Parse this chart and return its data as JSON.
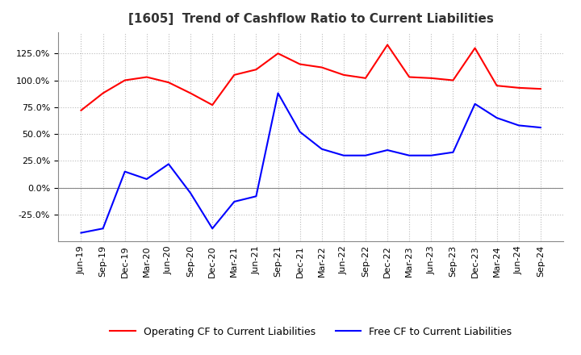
{
  "title": "[1605]  Trend of Cashflow Ratio to Current Liabilities",
  "x_labels": [
    "Jun-19",
    "Sep-19",
    "Dec-19",
    "Mar-20",
    "Jun-20",
    "Sep-20",
    "Dec-20",
    "Mar-21",
    "Jun-21",
    "Sep-21",
    "Dec-21",
    "Mar-22",
    "Jun-22",
    "Sep-22",
    "Dec-22",
    "Mar-23",
    "Jun-23",
    "Sep-23",
    "Dec-23",
    "Mar-24",
    "Jun-24",
    "Sep-24"
  ],
  "operating_cf": [
    0.72,
    0.88,
    1.0,
    1.03,
    0.98,
    0.88,
    0.77,
    1.05,
    1.1,
    1.25,
    1.15,
    1.12,
    1.05,
    1.02,
    1.33,
    1.03,
    1.02,
    1.0,
    1.3,
    0.95,
    0.93,
    0.92
  ],
  "free_cf": [
    -0.42,
    -0.38,
    0.15,
    0.08,
    0.22,
    -0.05,
    -0.38,
    -0.13,
    -0.08,
    0.88,
    0.52,
    0.36,
    0.3,
    0.3,
    0.35,
    0.3,
    0.3,
    0.33,
    0.78,
    0.65,
    0.58,
    0.56
  ],
  "operating_color": "#ff0000",
  "free_color": "#0000ff",
  "ylim_min": -0.5,
  "ylim_max": 1.45,
  "yticks": [
    -0.25,
    0.0,
    0.25,
    0.5,
    0.75,
    1.0,
    1.25
  ],
  "background_color": "#ffffff",
  "grid_color": "#bbbbbb",
  "legend_op": "Operating CF to Current Liabilities",
  "legend_free": "Free CF to Current Liabilities",
  "title_fontsize": 11,
  "tick_fontsize": 8,
  "legend_fontsize": 9
}
